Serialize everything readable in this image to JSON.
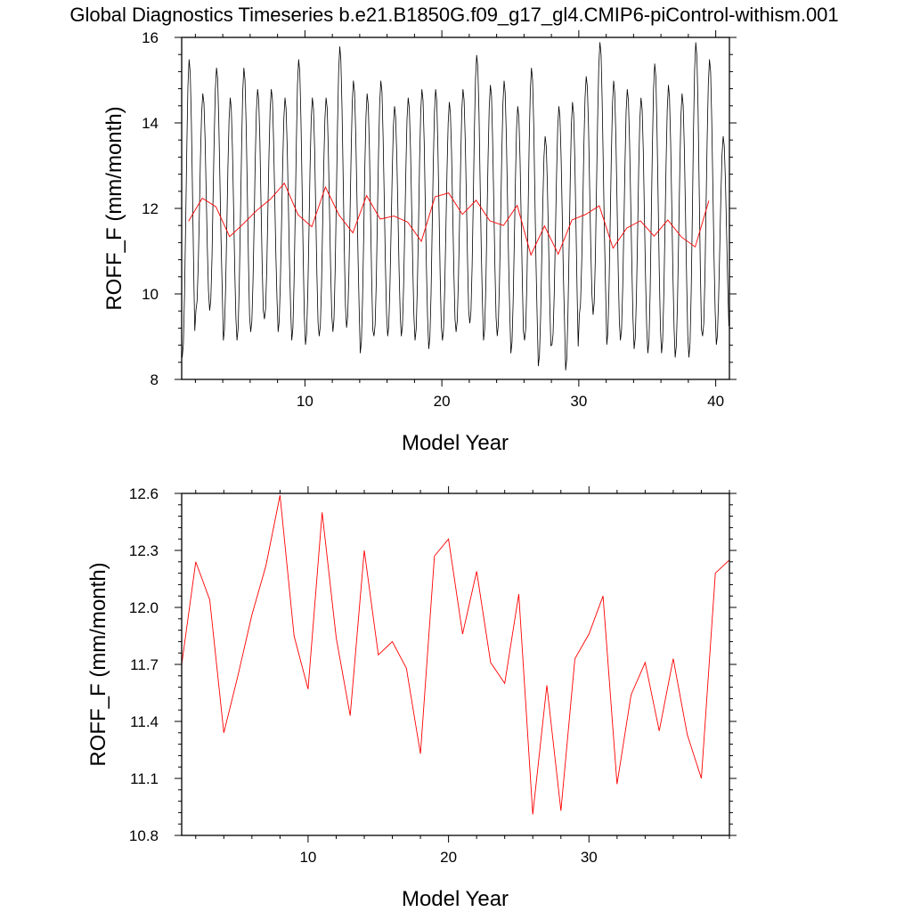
{
  "title": "Global Diagnostics Timeseries b.e21.B1850G.f09_g17_gl4.CMIP6-piControl-withism.001",
  "colors": {
    "monthly": "#000000",
    "annual": "#ff0000"
  },
  "chart_data": [
    {
      "type": "line",
      "xlabel": "Model Year",
      "ylabel": "ROFF_F (mm/month)",
      "xlim": [
        1,
        41
      ],
      "ylim": [
        8,
        16
      ],
      "xticks": [
        10,
        20,
        30,
        40
      ],
      "yticks": [
        8,
        10,
        12,
        14,
        16
      ],
      "yticklabels": [
        "8",
        "10",
        "12",
        "14",
        "16"
      ],
      "seasonal_cycle": {
        "months_per_year": 12,
        "annual_max": [
          15.5,
          14.7,
          15.3,
          14.6,
          15.3,
          14.8,
          14.8,
          14.6,
          15.5,
          14.6,
          14.6,
          15.8,
          15.0,
          14.7,
          15.0,
          14.4,
          14.6,
          14.8,
          14.8,
          14.5,
          14.8,
          15.6,
          14.9,
          15.0,
          14.4,
          15.3,
          13.7,
          14.4,
          14.5,
          15.1,
          15.9,
          15.0,
          14.8,
          14.6,
          15.4,
          14.9,
          14.7,
          15.9,
          15.5,
          13.7
        ],
        "annual_min": [
          8.5,
          9.6,
          9.6,
          8.9,
          8.9,
          9.1,
          9.4,
          9.1,
          8.9,
          8.8,
          9.0,
          9.1,
          9.2,
          8.6,
          9.0,
          9.0,
          9.0,
          8.9,
          8.7,
          8.9,
          9.1,
          9.3,
          8.9,
          9.0,
          8.6,
          8.9,
          8.3,
          8.8,
          8.2,
          9.5,
          9.5,
          8.8,
          8.9,
          8.7,
          8.6,
          8.6,
          8.5,
          8.5,
          9.0,
          8.8
        ]
      },
      "series": [
        {
          "name": "",
          "resolution": "monthly",
          "color": "#000000",
          "derived_from": "seasonal_cycle"
        },
        {
          "name": "",
          "resolution": "annual",
          "color": "#ff0000",
          "x": [
            1.5,
            2.5,
            3.5,
            4.5,
            5.5,
            6.5,
            7.5,
            8.5,
            9.5,
            10.5,
            11.5,
            12.5,
            13.5,
            14.5,
            15.5,
            16.5,
            17.5,
            18.5,
            19.5,
            20.5,
            21.5,
            22.5,
            23.5,
            24.5,
            25.5,
            26.5,
            27.5,
            28.5,
            29.5,
            30.5,
            31.5,
            32.5,
            33.5,
            34.5,
            35.5,
            36.5,
            37.5,
            38.5,
            39.5
          ],
          "y_from": "annual"
        }
      ]
    },
    {
      "type": "line",
      "xlabel": "Model Year",
      "ylabel": "ROFF_F (mm/month)",
      "xlim": [
        1,
        40
      ],
      "ylim": [
        10.8,
        12.6
      ],
      "xticks": [
        10,
        20,
        30
      ],
      "yticks": [
        10.8,
        11.1,
        11.4,
        11.7,
        12.0,
        12.3,
        12.6
      ],
      "yticklabels": [
        "10.8",
        "11.1",
        "11.4",
        "11.7",
        "12.0",
        "12.3",
        "12.6"
      ],
      "series": [
        {
          "name": "",
          "color": "#ff0000",
          "x": [
            1,
            2,
            3,
            4,
            5,
            6,
            7,
            8,
            9,
            10,
            11,
            12,
            13,
            14,
            15,
            16,
            17,
            18,
            19,
            20,
            21,
            22,
            23,
            24,
            25,
            26,
            27,
            28,
            29,
            30,
            31,
            32,
            33,
            34,
            35,
            36,
            37,
            38,
            39,
            40
          ],
          "y": [
            11.7,
            12.24,
            12.04,
            11.34,
            11.64,
            11.96,
            12.22,
            12.59,
            11.85,
            11.57,
            12.5,
            11.84,
            11.43,
            12.3,
            11.75,
            11.82,
            11.68,
            11.23,
            12.27,
            12.36,
            11.86,
            12.19,
            11.71,
            11.6,
            12.07,
            10.91,
            11.59,
            10.93,
            11.73,
            11.86,
            12.06,
            11.07,
            11.54,
            11.71,
            11.35,
            11.73,
            11.33,
            11.1,
            12.18,
            12.25
          ]
        }
      ]
    }
  ]
}
